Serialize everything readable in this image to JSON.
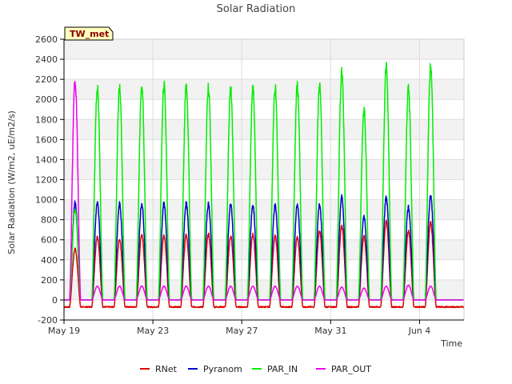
{
  "chart_data": {
    "type": "line",
    "title": "Solar Radiation",
    "xlabel": "Time",
    "ylabel": "Solar Radiation (W/m2, uE/m2/s)",
    "station_badge": "TW_met",
    "x_range": [
      "2024-05-19T00:00",
      "2024-06-06T00:00"
    ],
    "ylim": [
      -200,
      2600
    ],
    "grid": true,
    "legend_position": "bottom-center",
    "x_ticks": [
      {
        "date": "2024-05-19",
        "label": "May 19"
      },
      {
        "date": "2024-05-23",
        "label": "May 23"
      },
      {
        "date": "2024-05-27",
        "label": "May 27"
      },
      {
        "date": "2024-05-31",
        "label": "May 31"
      },
      {
        "date": "2024-06-04",
        "label": "Jun 4"
      }
    ],
    "y_ticks": [
      -200,
      0,
      200,
      400,
      600,
      800,
      1000,
      1200,
      1400,
      1600,
      1800,
      2000,
      2200,
      2400,
      2600
    ],
    "days": [
      "2024-05-19",
      "2024-05-20",
      "2024-05-21",
      "2024-05-22",
      "2024-05-23",
      "2024-05-24",
      "2024-05-25",
      "2024-05-26",
      "2024-05-27",
      "2024-05-28",
      "2024-05-29",
      "2024-05-30",
      "2024-05-31",
      "2024-06-01",
      "2024-06-02",
      "2024-06-03",
      "2024-06-04",
      "2024-06-05"
    ],
    "series": [
      {
        "name": "RNet",
        "color": "#dd0000",
        "night_value": -70,
        "daily_peak": [
          520,
          650,
          620,
          670,
          660,
          660,
          670,
          650,
          670,
          650,
          640,
          700,
          760,
          650,
          800,
          700,
          790,
          null
        ]
      },
      {
        "name": "Pyranom",
        "color": "#0000cc",
        "night_value": 0,
        "daily_peak": [
          990,
          990,
          980,
          980,
          985,
          985,
          980,
          975,
          960,
          965,
          965,
          965,
          1050,
          850,
          1050,
          950,
          1060,
          null
        ]
      },
      {
        "name": "PAR_IN",
        "color": "#00ee00",
        "night_value": 0,
        "daily_peak": [
          920,
          2180,
          2170,
          2180,
          2190,
          2185,
          2180,
          2170,
          2160,
          2180,
          2190,
          2200,
          2340,
          1950,
          2380,
          2150,
          2400,
          null
        ]
      },
      {
        "name": "PAR_OUT",
        "color": "#ee00ee",
        "night_value": 0,
        "daily_peak": [
          2250,
          140,
          140,
          140,
          140,
          140,
          140,
          140,
          140,
          140,
          140,
          140,
          130,
          120,
          140,
          150,
          140,
          null
        ]
      }
    ]
  }
}
